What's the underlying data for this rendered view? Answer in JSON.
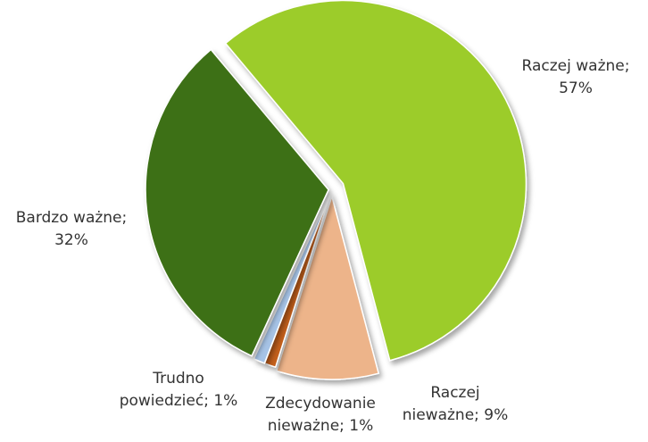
{
  "chart_data": {
    "type": "pie",
    "values": [
      57,
      9,
      1,
      1,
      32
    ],
    "value_labels": [
      "Raczej ważne; 57%",
      "Raczej nieważne; 9%",
      "Zdecydowanie nieważne; 1%",
      "Trudno powiedzieć; 1%",
      "Bardzo ważne; 32%"
    ],
    "colors": [
      "#9ccc2c",
      "#edb48a",
      "#c4601e",
      "#a6c3e6",
      "#3e7016"
    ]
  }
}
